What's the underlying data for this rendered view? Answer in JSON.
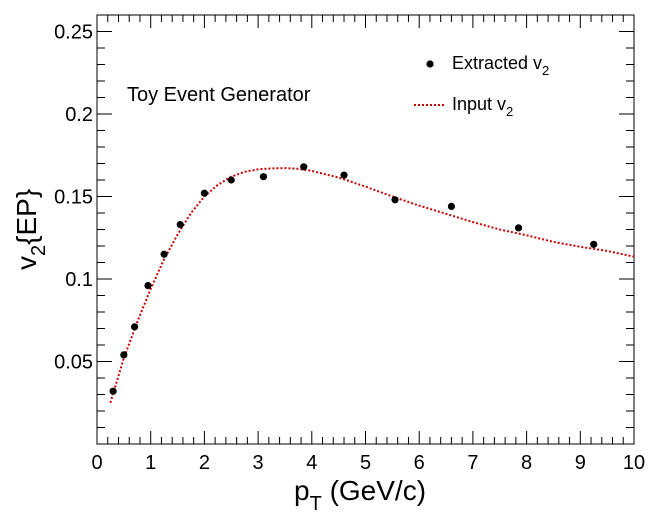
{
  "chart_data": {
    "type": "scatter",
    "annotation": "Toy Event Generator",
    "xlabel": {
      "main": "p",
      "sub": "T",
      "rest": " (GeV/c)"
    },
    "ylabel": {
      "main": "v",
      "sub": "2",
      "rest": "{EP}"
    },
    "xlim": [
      0,
      10
    ],
    "ylim": [
      0,
      0.26
    ],
    "x_ticks": [
      "0",
      "1",
      "2",
      "3",
      "4",
      "5",
      "6",
      "7",
      "8",
      "9",
      "10"
    ],
    "y_ticks": [
      "0.05",
      "0.1",
      "0.15",
      "0.2",
      "0.25"
    ],
    "legend": {
      "placement": "top-right",
      "entries": [
        {
          "main": "Extracted v",
          "sub": "2",
          "marker": "dot"
        },
        {
          "main": "Input v",
          "sub": "2",
          "marker": "dotted-line"
        }
      ]
    },
    "series": [
      {
        "name": "Extracted v2",
        "x": [
          0.3,
          0.5,
          0.7,
          0.95,
          1.25,
          1.55,
          2.0,
          2.5,
          3.1,
          3.85,
          4.6,
          5.55,
          6.6,
          7.85,
          9.25
        ],
        "y": [
          0.032,
          0.054,
          0.071,
          0.096,
          0.115,
          0.133,
          0.152,
          0.16,
          0.162,
          0.168,
          0.163,
          0.148,
          0.144,
          0.131,
          0.121
        ]
      },
      {
        "name": "Input v2",
        "x": [
          0.25,
          0.5,
          0.75,
          1.0,
          1.25,
          1.5,
          1.75,
          2.0,
          2.25,
          2.5,
          2.75,
          3.0,
          3.25,
          3.5,
          3.75,
          4.0,
          4.5,
          5.0,
          5.5,
          6.0,
          6.5,
          7.0,
          7.5,
          8.0,
          8.5,
          9.0,
          9.5,
          10.0
        ],
        "y": [
          0.025,
          0.052,
          0.074,
          0.094,
          0.112,
          0.127,
          0.14,
          0.15,
          0.157,
          0.162,
          0.165,
          0.1665,
          0.167,
          0.1672,
          0.1668,
          0.1655,
          0.1615,
          0.156,
          0.15,
          0.1445,
          0.1395,
          0.1345,
          0.13,
          0.1265,
          0.1225,
          0.1195,
          0.117,
          0.1135
        ],
        "color": "#cc0000",
        "style": "dotted"
      }
    ],
    "colors": {
      "points": "#000000",
      "input_line": "#cc0000",
      "frame": "#000000"
    }
  }
}
